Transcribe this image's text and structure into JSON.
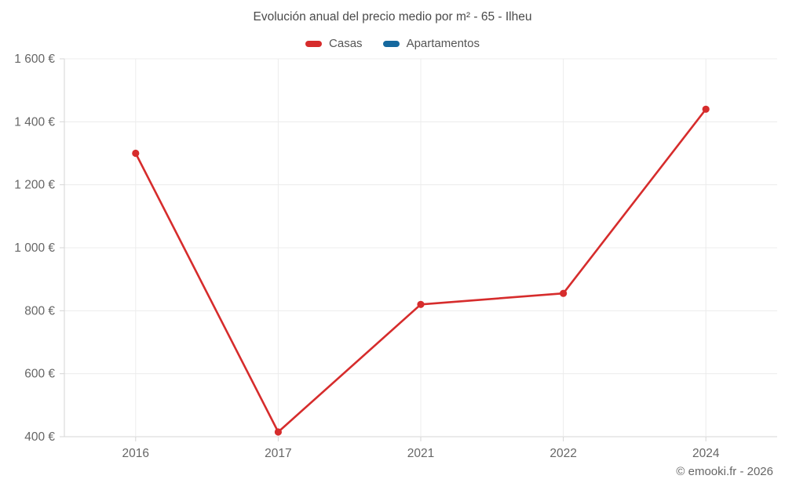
{
  "chart_data": {
    "type": "line",
    "title": "Evolución anual del precio medio por m² - 65 - Ilheu",
    "categories": [
      "2016",
      "2017",
      "2021",
      "2022",
      "2024"
    ],
    "series": [
      {
        "name": "Casas",
        "color": "#d62c2c",
        "values": [
          1300,
          415,
          820,
          855,
          1440
        ]
      },
      {
        "name": "Apartamentos",
        "color": "#15689e",
        "values": []
      }
    ],
    "xlabel": "",
    "ylabel": "",
    "ylim": [
      400,
      1600
    ],
    "y_ticks": [
      400,
      600,
      800,
      1000,
      1200,
      1400,
      1600
    ],
    "y_tick_labels": [
      "400 €",
      "600 €",
      "800 €",
      "1 000 €",
      "1 200 €",
      "1 400 €",
      "1 600 €"
    ],
    "grid": true,
    "legend_position": "top",
    "colors": {
      "gridline": "#ececec",
      "axis_line": "#d6d6d6",
      "tick_label": "#666666",
      "background": "#ffffff"
    }
  },
  "footer": {
    "copyright": "© emooki.fr - 2026"
  }
}
